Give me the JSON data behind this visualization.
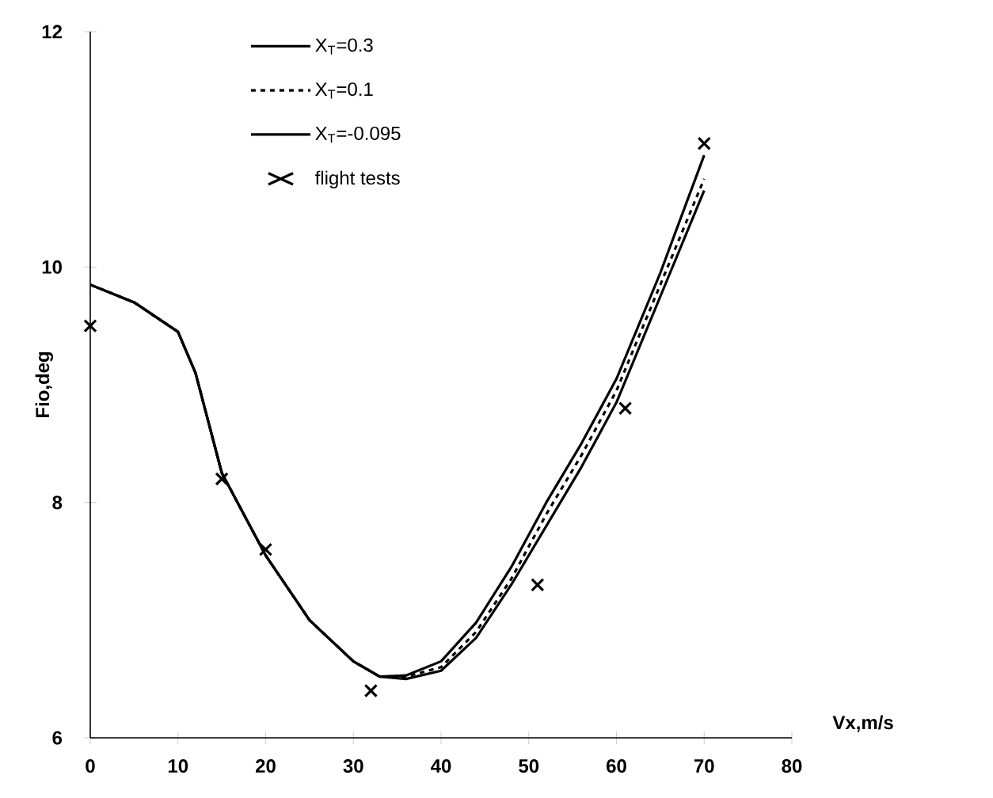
{
  "chart_data": {
    "type": "line",
    "xlabel": "Vx,m/s",
    "ylabel": "Fio,deg",
    "xlim": [
      0,
      80
    ],
    "ylim": [
      6,
      12
    ],
    "xticks": [
      0,
      10,
      20,
      30,
      40,
      50,
      60,
      70,
      80
    ],
    "yticks": [
      6,
      8,
      10,
      12
    ],
    "grid": false,
    "legend": "top",
    "marker": "none",
    "series": [
      {
        "name": "X$_{T}$=0.3",
        "color": "#000000",
        "line_style": "solid",
        "x": [
          0,
          5,
          10,
          12,
          15,
          20,
          25,
          30,
          33,
          36,
          40,
          44,
          48,
          52,
          56,
          60,
          65,
          70
        ],
        "values": [
          9.85,
          9.7,
          9.45,
          9.1,
          8.25,
          7.55,
          7.0,
          6.65,
          6.52,
          6.53,
          6.65,
          6.98,
          7.45,
          8.0,
          8.5,
          9.05,
          9.95,
          10.95
        ]
      },
      {
        "name": "X$_{T}$=0.1",
        "color": "#000000",
        "line_style": "dashed",
        "x": [
          0,
          5,
          10,
          12,
          15,
          20,
          25,
          30,
          33,
          36,
          40,
          44,
          48,
          52,
          56,
          60,
          65,
          70
        ],
        "values": [
          9.85,
          9.7,
          9.45,
          9.1,
          8.25,
          7.55,
          7.0,
          6.65,
          6.52,
          6.52,
          6.6,
          6.9,
          7.35,
          7.9,
          8.4,
          8.95,
          9.85,
          10.75
        ]
      },
      {
        "name": "X$_{T}$=-0.095",
        "color": "#000000",
        "line_style": "solid",
        "x": [
          0,
          5,
          10,
          12,
          15,
          20,
          25,
          30,
          33,
          36,
          40,
          44,
          48,
          52,
          56,
          60,
          65,
          70
        ],
        "values": [
          9.85,
          9.7,
          9.45,
          9.1,
          8.25,
          7.55,
          7.0,
          6.65,
          6.52,
          6.5,
          6.57,
          6.85,
          7.3,
          7.8,
          8.3,
          8.85,
          9.75,
          10.65
        ]
      },
      {
        "name": "flight tests",
        "type": "scatter",
        "marker": "cross",
        "color": "#000000",
        "x": [
          0,
          15,
          20,
          32,
          51,
          61,
          70
        ],
        "values": [
          9.5,
          8.2,
          7.6,
          6.4,
          7.3,
          8.8,
          11.05
        ]
      }
    ]
  }
}
